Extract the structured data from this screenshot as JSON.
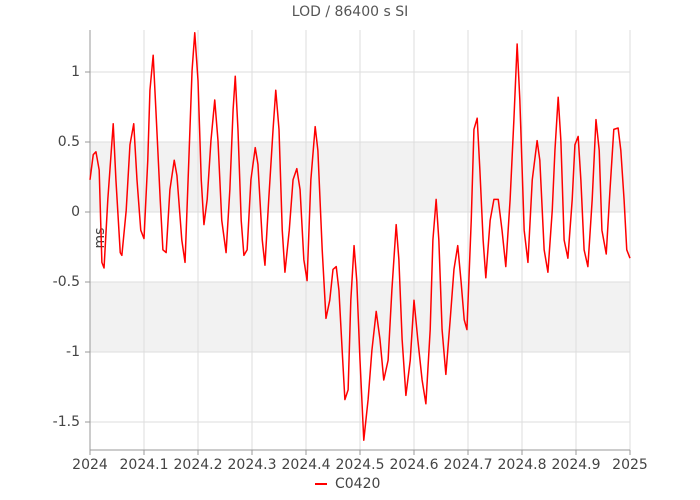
{
  "chart_data": {
    "type": "line",
    "title": "LOD / 86400 s SI",
    "y_label": "ms",
    "xlim": [
      2024,
      2025
    ],
    "ylim": [
      -1.7,
      1.3
    ],
    "xticks": [
      2024,
      2024.1,
      2024.2,
      2024.3,
      2024.4,
      2024.5,
      2024.6,
      2024.7,
      2024.8,
      2024.9,
      2025
    ],
    "yticks": [
      -1.5,
      -1,
      -0.5,
      0,
      0.5,
      1
    ],
    "bands": [
      [
        -1,
        -0.5
      ],
      [
        0,
        0.5
      ]
    ],
    "grid": true,
    "legend": "bottom",
    "x": [
      2024,
      2024.006,
      2024.011,
      2024.017,
      2024.022,
      2024.026,
      2024.033,
      2024.043,
      2024.048,
      2024.056,
      2024.059,
      2024.067,
      2024.074,
      2024.081,
      2024.087,
      2024.094,
      2024.1,
      2024.107,
      2024.111,
      2024.117,
      2024.122,
      2024.13,
      2024.135,
      2024.141,
      2024.148,
      2024.156,
      2024.161,
      2024.17,
      2024.176,
      2024.183,
      2024.189,
      2024.194,
      2024.2,
      2024.206,
      2024.211,
      2024.217,
      2024.224,
      2024.231,
      2024.237,
      2024.244,
      2024.252,
      2024.259,
      2024.265,
      2024.269,
      2024.274,
      2024.28,
      2024.285,
      2024.291,
      2024.298,
      2024.306,
      2024.311,
      2024.319,
      2024.324,
      2024.331,
      2024.339,
      2024.344,
      2024.35,
      2024.356,
      2024.361,
      2024.369,
      2024.376,
      2024.383,
      2024.389,
      2024.396,
      2024.402,
      2024.409,
      2024.417,
      2024.422,
      2024.43,
      2024.437,
      2024.444,
      2024.45,
      2024.456,
      2024.461,
      2024.467,
      2024.472,
      2024.478,
      2024.483,
      2024.489,
      2024.494,
      2024.5,
      2024.507,
      2024.515,
      2024.522,
      2024.53,
      2024.537,
      2024.544,
      2024.552,
      2024.559,
      2024.567,
      2024.572,
      2024.578,
      2024.585,
      2024.593,
      2024.6,
      2024.607,
      2024.615,
      2024.622,
      2024.63,
      2024.635,
      2024.641,
      2024.646,
      2024.652,
      2024.659,
      2024.667,
      2024.674,
      2024.681,
      2024.687,
      2024.693,
      2024.698,
      2024.706,
      2024.711,
      2024.717,
      2024.722,
      2024.728,
      2024.733,
      2024.741,
      2024.748,
      2024.756,
      2024.763,
      2024.77,
      2024.778,
      2024.785,
      2024.791,
      2024.796,
      2024.804,
      2024.811,
      2024.819,
      2024.828,
      2024.833,
      2024.841,
      2024.848,
      2024.856,
      2024.861,
      2024.867,
      2024.872,
      2024.878,
      2024.885,
      2024.893,
      2024.898,
      2024.904,
      2024.909,
      2024.915,
      2024.922,
      2024.93,
      2024.937,
      2024.943,
      2024.948,
      2024.956,
      2024.963,
      2024.97,
      2024.978,
      2024.983,
      2024.989,
      2024.994,
      2025
    ],
    "series": [
      {
        "name": "C0420",
        "color": "#ff0000",
        "values": [
          0.23,
          0.41,
          0.43,
          0.3,
          -0.36,
          -0.4,
          0.09,
          0.63,
          0.23,
          -0.29,
          -0.31,
          0.01,
          0.48,
          0.63,
          0.23,
          -0.13,
          -0.19,
          0.37,
          0.87,
          1.12,
          0.73,
          0.09,
          -0.27,
          -0.29,
          0.16,
          0.37,
          0.26,
          -0.2,
          -0.36,
          0.37,
          1.01,
          1.28,
          0.94,
          0.23,
          -0.09,
          0.09,
          0.51,
          0.8,
          0.51,
          -0.06,
          -0.29,
          0.16,
          0.73,
          0.97,
          0.59,
          -0.06,
          -0.31,
          -0.27,
          0.23,
          0.46,
          0.34,
          -0.2,
          -0.38,
          0.09,
          0.59,
          0.87,
          0.59,
          -0.13,
          -0.43,
          -0.13,
          0.23,
          0.31,
          0.16,
          -0.34,
          -0.49,
          0.23,
          0.61,
          0.44,
          -0.27,
          -0.76,
          -0.63,
          -0.41,
          -0.39,
          -0.56,
          -0.99,
          -1.34,
          -1.27,
          -0.63,
          -0.24,
          -0.49,
          -1.06,
          -1.63,
          -1.34,
          -0.99,
          -0.71,
          -0.91,
          -1.2,
          -1.06,
          -0.56,
          -0.09,
          -0.34,
          -0.91,
          -1.31,
          -1.06,
          -0.63,
          -0.91,
          -1.2,
          -1.37,
          -0.84,
          -0.2,
          0.09,
          -0.2,
          -0.84,
          -1.16,
          -0.77,
          -0.41,
          -0.24,
          -0.49,
          -0.77,
          -0.84,
          -0.06,
          0.59,
          0.67,
          0.3,
          -0.2,
          -0.47,
          -0.06,
          0.09,
          0.09,
          -0.13,
          -0.39,
          0.09,
          0.66,
          1.2,
          0.8,
          -0.13,
          -0.36,
          0.23,
          0.51,
          0.37,
          -0.27,
          -0.43,
          0.01,
          0.44,
          0.82,
          0.51,
          -0.2,
          -0.33,
          0.09,
          0.48,
          0.54,
          0.23,
          -0.27,
          -0.39,
          0.09,
          0.66,
          0.44,
          -0.13,
          -0.3,
          0.16,
          0.59,
          0.6,
          0.44,
          0.09,
          -0.27,
          -0.33
        ]
      }
    ]
  }
}
